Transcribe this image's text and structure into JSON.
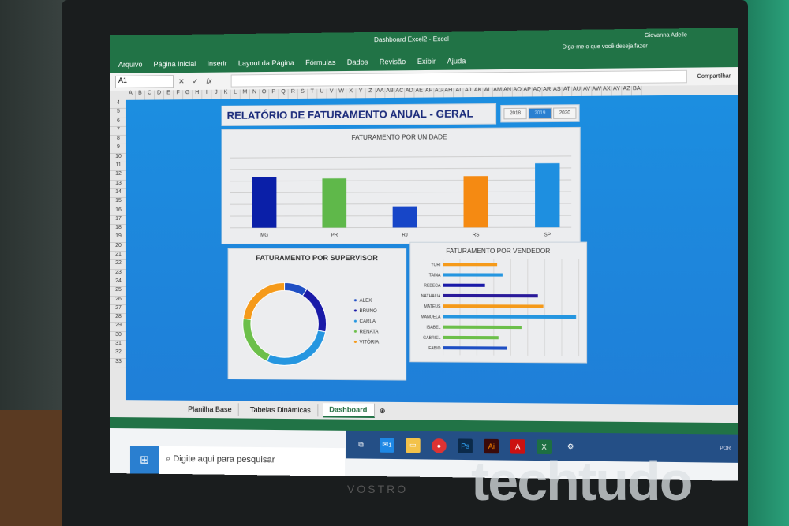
{
  "app": {
    "window_title": "Dashboard Excel2 - Excel",
    "user": "Giovanna Adelle",
    "share": "Compartilhar",
    "menu": [
      "Arquivo",
      "Página Inicial",
      "Inserir",
      "Layout da Página",
      "Fórmulas",
      "Dados",
      "Revisão",
      "Exibir",
      "Ajuda"
    ],
    "tell_me": "Diga-me o que você deseja fazer",
    "name_box": "A1"
  },
  "columns": [
    "A",
    "B",
    "C",
    "D",
    "E",
    "F",
    "G",
    "H",
    "I",
    "J",
    "K",
    "L",
    "M",
    "N",
    "O",
    "P",
    "Q",
    "R",
    "S",
    "T",
    "U",
    "V",
    "W",
    "X",
    "Y",
    "Z",
    "AA",
    "AB",
    "AC",
    "AD",
    "AE",
    "AF",
    "AG",
    "AH",
    "AI",
    "AJ",
    "AK",
    "AL",
    "AM",
    "AN",
    "AO",
    "AP",
    "AQ",
    "AR",
    "AS",
    "AT",
    "AU",
    "AV",
    "AW",
    "AX",
    "AY",
    "AZ",
    "BA"
  ],
  "rows": [
    "4",
    "5",
    "6",
    "7",
    "8",
    "9",
    "10",
    "11",
    "12",
    "13",
    "14",
    "15",
    "16",
    "17",
    "18",
    "19",
    "20",
    "21",
    "22",
    "23",
    "24",
    "25",
    "26",
    "27",
    "28",
    "29",
    "30",
    "31",
    "32",
    "33"
  ],
  "dashboard": {
    "title": "RELATÓRIO DE FATURAMENTO ANUAL - GERAL",
    "years": [
      "2018",
      "2019",
      "2020"
    ],
    "selected_year": "2019"
  },
  "chart_data": [
    {
      "type": "bar",
      "title": "FATURAMENTO POR UNIDADE",
      "categories": [
        "MG",
        "PR",
        "RJ",
        "RS",
        "SP"
      ],
      "values": [
        58,
        56,
        24,
        58,
        72
      ],
      "colors": [
        "#0a1fa8",
        "#5fb84a",
        "#1746c8",
        "#f58a12",
        "#1e8fe0"
      ],
      "grid": true
    },
    {
      "type": "pie",
      "title": "FATURAMENTO POR SUPERVISOR",
      "donut": true,
      "categories": [
        "ALEX",
        "BRUNO",
        "CARLA",
        "RENATA",
        "VITÓRIA"
      ],
      "values": [
        9,
        19,
        29,
        20,
        23
      ],
      "colors": [
        "#1f4fc4",
        "#1a1aa8",
        "#2596e0",
        "#6cbf4a",
        "#f59a1a"
      ],
      "legend": "right"
    },
    {
      "type": "bar",
      "orientation": "horizontal",
      "title": "FATURAMENTO POR VENDEDOR",
      "categories": [
        "YURI",
        "TAINA",
        "REBECA",
        "NATHALIA",
        "MATEUS",
        "MANOELA",
        "ISABEL",
        "GABRIEL",
        "FABIO"
      ],
      "values": [
        200,
        220,
        155,
        350,
        370,
        490,
        290,
        205,
        235
      ],
      "colors": [
        "#f59a1a",
        "#2596e0",
        "#1a1aa8",
        "#2a1a9a",
        "#f59a1a",
        "#2596e0",
        "#6cbf4a",
        "#6cbf4a",
        "#1f4fc4"
      ],
      "grid": true
    }
  ],
  "sheet_tabs": [
    "Planilha Base",
    "Tabelas Dinâmicas",
    "Dashboard"
  ],
  "active_tab": "Dashboard",
  "taskbar": {
    "search_placeholder": "Digite aqui para pesquisar",
    "tray_lang": "POR",
    "mail_badge": "1"
  },
  "laptop_brand": "VOSTRO",
  "watermark": "techtudo"
}
